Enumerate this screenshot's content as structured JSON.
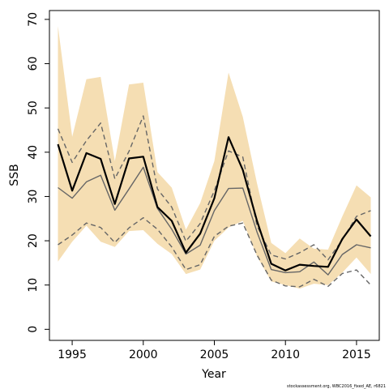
{
  "chart_data": {
    "type": "line",
    "xlabel": "Year",
    "ylabel": "SSB",
    "xlim": [
      1993.4,
      2016.6
    ],
    "ylim": [
      -2.5,
      72
    ],
    "xticks": [
      1995,
      2000,
      2005,
      2010,
      2015
    ],
    "yticks": [
      0,
      10,
      20,
      30,
      40,
      50,
      60,
      70
    ],
    "grid": false,
    "x": [
      1994,
      1995,
      1996,
      1997,
      1998,
      1999,
      2000,
      2001,
      2002,
      2003,
      2004,
      2005,
      2006,
      2007,
      2008,
      2009,
      2010,
      2011,
      2012,
      2013,
      2014,
      2015,
      2016
    ],
    "band": {
      "color": "#f5deb3",
      "upper": [
        68.5,
        43.5,
        56.5,
        57.0,
        38.0,
        55.3,
        55.7,
        35.5,
        32.0,
        22.5,
        28.5,
        38.0,
        58.0,
        48.0,
        33.0,
        19.5,
        17.2,
        20.5,
        18.2,
        18.0,
        25.5,
        32.5,
        29.8
      ],
      "lower": [
        15.3,
        19.8,
        23.4,
        19.8,
        18.6,
        22.2,
        22.4,
        19.3,
        17.0,
        12.5,
        13.5,
        20.0,
        23.0,
        24.5,
        16.5,
        10.8,
        10.0,
        9.2,
        10.3,
        10.0,
        12.8,
        16.2,
        12.5
      ]
    },
    "series": [
      {
        "color": "#000000",
        "style": "solid",
        "width": 2.2,
        "values": [
          41.8,
          31.3,
          39.8,
          38.5,
          28.3,
          38.6,
          39.0,
          27.6,
          24.5,
          17.3,
          21.6,
          29.6,
          43.4,
          36.0,
          24.5,
          14.8,
          13.3,
          14.6,
          14.3,
          14.1,
          20.4,
          24.8,
          21.0
        ]
      },
      {
        "color": "#666666",
        "style": "solid",
        "width": 1.4,
        "values": [
          32.0,
          29.6,
          33.3,
          34.8,
          26.9,
          31.7,
          36.6,
          27.3,
          22.6,
          17.0,
          19.0,
          26.8,
          31.8,
          31.9,
          22.0,
          13.5,
          12.8,
          13.0,
          15.2,
          12.3,
          16.9,
          19.1,
          18.4
        ]
      },
      {
        "color": "#666666",
        "style": "dashed",
        "width": 1.4,
        "values": [
          45.3,
          37.7,
          42.6,
          46.6,
          34.0,
          40.2,
          48.2,
          31.7,
          27.6,
          19.9,
          23.9,
          31.3,
          40.3,
          38.9,
          23.4,
          16.8,
          15.9,
          17.3,
          19.1,
          15.7,
          20.2,
          25.5,
          26.8
        ]
      },
      {
        "color": "#666666",
        "style": "dashed",
        "width": 1.4,
        "values": [
          19.1,
          21.3,
          24.0,
          23.0,
          19.6,
          22.9,
          25.2,
          22.6,
          18.6,
          13.5,
          14.6,
          21.0,
          23.3,
          24.0,
          16.8,
          11.1,
          9.8,
          9.6,
          11.3,
          9.7,
          12.6,
          13.4,
          10.0
        ]
      }
    ],
    "credit": "stockassessment.org, WBC2016_fixed_AE, r6821"
  }
}
